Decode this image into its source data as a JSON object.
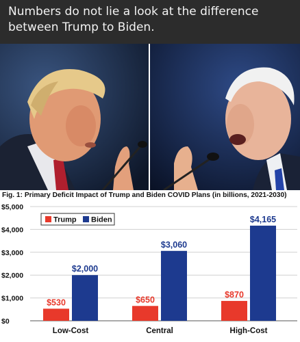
{
  "post": {
    "caption": "Numbers do not lie a look at the difference\nbetween Trump to Biden."
  },
  "colors": {
    "trump": "#e8392b",
    "biden": "#1d3a8f",
    "background": "#2c2c2c"
  },
  "chart_data": {
    "type": "bar",
    "title": "Fig. 1: Primary Deficit Impact of Trump and Biden COVID Plans (in billions, 2021-2030)",
    "categories": [
      "Low-Cost",
      "Central",
      "High-Cost"
    ],
    "series": [
      {
        "name": "Trump",
        "values": [
          530,
          650,
          870
        ],
        "labels": [
          "$530",
          "$650",
          "$870"
        ],
        "color": "#e8392b"
      },
      {
        "name": "Biden",
        "values": [
          2000,
          3060,
          4165
        ],
        "labels": [
          "$2,000",
          "$3,060",
          "$4,165"
        ],
        "color": "#1d3a8f"
      }
    ],
    "ylim": [
      0,
      5000
    ],
    "yticks": [
      0,
      1000,
      2000,
      3000,
      4000,
      5000
    ],
    "ytick_labels": [
      "$0",
      "$1,000",
      "$2,000",
      "$3,000",
      "$4,000",
      "$5,000"
    ],
    "xlabel": "",
    "ylabel": "",
    "grid": true,
    "legend": "top-left"
  }
}
